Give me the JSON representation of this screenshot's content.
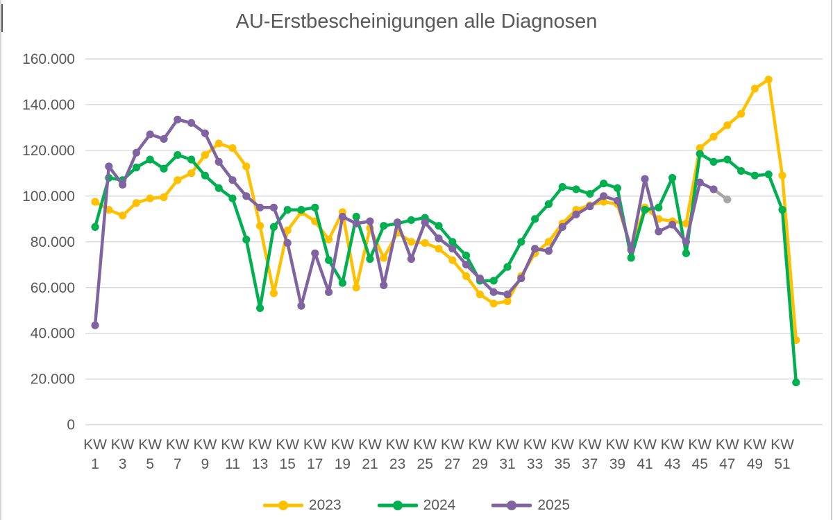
{
  "title": "AU-Erstbescheinigungen alle Diagnosen",
  "colors": {
    "title_text": "#595959",
    "axis_text": "#595959",
    "gridline": "#d9d9d9",
    "series_2023": "#FFC000",
    "series_2024": "#00B050",
    "series_2025": "#8064A2",
    "provisional_gray": "#A6A6A6"
  },
  "chart_data": {
    "type": "line",
    "title": "AU-Erstbescheinigungen alle Diagnosen",
    "xlabel": "",
    "ylabel": "",
    "x_unit_label": "KW",
    "x_ticks": [
      1,
      3,
      5,
      7,
      9,
      11,
      13,
      15,
      17,
      19,
      21,
      23,
      25,
      27,
      29,
      31,
      33,
      35,
      37,
      39,
      41,
      43,
      45,
      47,
      49,
      51
    ],
    "x_range": [
      1,
      52
    ],
    "y_axis": {
      "min": 0,
      "max": 160000,
      "step": 20000,
      "tick_labels": [
        "0",
        "20.000",
        "40.000",
        "60.000",
        "80.000",
        "100.000",
        "120.000",
        "140.000",
        "160.000"
      ]
    },
    "grid": "horizontal",
    "legend_position": "bottom",
    "series": [
      {
        "name": "2023",
        "color": "#FFC000",
        "x_start": 1,
        "values": [
          97500,
          94000,
          91500,
          97000,
          99000,
          99500,
          107000,
          110000,
          118000,
          123000,
          121000,
          113000,
          87000,
          57500,
          85000,
          93000,
          89000,
          81000,
          93000,
          60000,
          86000,
          73000,
          84000,
          80000,
          79500,
          77000,
          72000,
          65000,
          57000,
          53000,
          54000,
          65000,
          75000,
          80000,
          88000,
          94000,
          96000,
          97500,
          96500,
          77000,
          95000,
          90000,
          89000,
          88000,
          121000,
          126000,
          131000,
          136000,
          147000,
          151000,
          109000,
          37000
        ]
      },
      {
        "name": "2024",
        "color": "#00B050",
        "x_start": 1,
        "values": [
          86500,
          108000,
          107000,
          112500,
          116000,
          112000,
          118000,
          116000,
          109000,
          103500,
          99000,
          81000,
          51000,
          86500,
          94000,
          94000,
          95000,
          72000,
          62000,
          91000,
          72500,
          87000,
          88000,
          89500,
          90500,
          87000,
          80000,
          74000,
          63000,
          63000,
          69000,
          80000,
          90000,
          96500,
          104000,
          103000,
          101000,
          105500,
          103500,
          73000,
          94000,
          95000,
          108000,
          75000,
          118500,
          115000,
          116000,
          111000,
          109000,
          109500,
          94000,
          18500
        ]
      },
      {
        "name": "2025",
        "color": "#8064A2",
        "x_start": 1,
        "values": [
          43500,
          113000,
          105000,
          119000,
          127000,
          125000,
          133500,
          132000,
          127500,
          115000,
          107000,
          100000,
          95000,
          95000,
          79500,
          52000,
          75000,
          58000,
          91000,
          88000,
          89000,
          61000,
          88500,
          72500,
          88500,
          81500,
          77000,
          70000,
          64000,
          58000,
          57000,
          64000,
          77000,
          76000,
          86500,
          92000,
          95500,
          100000,
          98000,
          76500,
          107500,
          84500,
          87500,
          80000,
          106000,
          103000
        ],
        "provisional_point": {
          "kw": 47,
          "value": 98500,
          "color": "#A6A6A6"
        }
      }
    ]
  }
}
